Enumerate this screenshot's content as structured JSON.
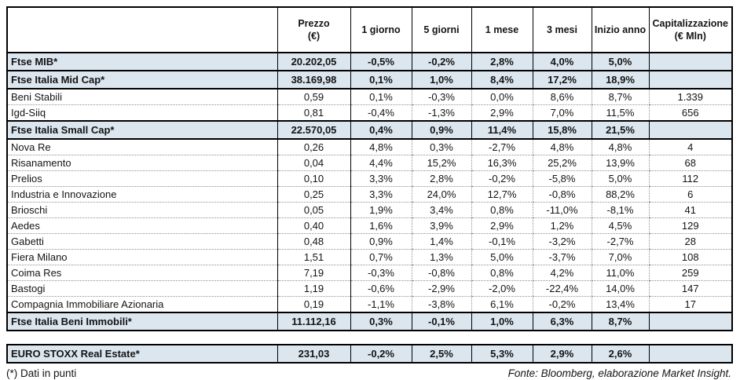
{
  "colors": {
    "index_row_bg": "#dce6ee",
    "border": "#000000",
    "dotted_border": "#8f8f8f"
  },
  "chart_data": {
    "type": "table",
    "title": "",
    "columns": [
      {
        "label": "",
        "sublabel": ""
      },
      {
        "label": "Prezzo",
        "sublabel": "(€)"
      },
      {
        "label": "1 giorno",
        "sublabel": ""
      },
      {
        "label": "5 giorni",
        "sublabel": ""
      },
      {
        "label": "1 mese",
        "sublabel": ""
      },
      {
        "label": "3 mesi",
        "sublabel": ""
      },
      {
        "label": "Inizio anno",
        "sublabel": ""
      },
      {
        "label": "Capitalizzazione",
        "sublabel": "(€ Mln)"
      }
    ],
    "rows": [
      {
        "name": "Ftse MIB*",
        "type": "index",
        "values": [
          "20.202,05",
          "-0,5%",
          "-0,2%",
          "2,8%",
          "4,0%",
          "5,0%",
          ""
        ]
      },
      {
        "name": "Ftse Italia Mid Cap*",
        "type": "index",
        "values": [
          "38.169,98",
          "0,1%",
          "1,0%",
          "8,4%",
          "17,2%",
          "18,9%",
          ""
        ]
      },
      {
        "name": "Beni Stabili",
        "type": "stock",
        "values": [
          "0,59",
          "0,1%",
          "-0,3%",
          "0,0%",
          "8,6%",
          "8,7%",
          "1.339"
        ]
      },
      {
        "name": "Igd-Siiq",
        "type": "stock",
        "values": [
          "0,81",
          "-0,4%",
          "-1,3%",
          "2,9%",
          "7,0%",
          "11,5%",
          "656"
        ]
      },
      {
        "name": "Ftse Italia Small Cap*",
        "type": "index",
        "values": [
          "22.570,05",
          "0,4%",
          "0,9%",
          "11,4%",
          "15,8%",
          "21,5%",
          ""
        ]
      },
      {
        "name": "Nova Re",
        "type": "stock",
        "values": [
          "0,26",
          "4,8%",
          "0,3%",
          "-2,7%",
          "4,8%",
          "4,8%",
          "4"
        ]
      },
      {
        "name": "Risanamento",
        "type": "stock",
        "values": [
          "0,04",
          "4,4%",
          "15,2%",
          "16,3%",
          "25,2%",
          "13,9%",
          "68"
        ]
      },
      {
        "name": "Prelios",
        "type": "stock",
        "values": [
          "0,10",
          "3,3%",
          "2,8%",
          "-0,2%",
          "-5,8%",
          "5,0%",
          "112"
        ]
      },
      {
        "name": "Industria e Innovazione",
        "type": "stock",
        "values": [
          "0,25",
          "3,3%",
          "24,0%",
          "12,7%",
          "-0,8%",
          "88,2%",
          "6"
        ]
      },
      {
        "name": "Brioschi",
        "type": "stock",
        "values": [
          "0,05",
          "1,9%",
          "3,4%",
          "0,8%",
          "-11,0%",
          "-8,1%",
          "41"
        ]
      },
      {
        "name": "Aedes",
        "type": "stock",
        "values": [
          "0,40",
          "1,6%",
          "3,9%",
          "2,9%",
          "1,2%",
          "4,5%",
          "129"
        ]
      },
      {
        "name": "Gabetti",
        "type": "stock",
        "values": [
          "0,48",
          "0,9%",
          "1,4%",
          "-0,1%",
          "-3,2%",
          "-2,7%",
          "28"
        ]
      },
      {
        "name": "Fiera Milano",
        "type": "stock",
        "values": [
          "1,51",
          "0,7%",
          "1,3%",
          "5,0%",
          "-3,7%",
          "7,0%",
          "108"
        ]
      },
      {
        "name": "Coima Res",
        "type": "stock",
        "values": [
          "7,19",
          "-0,3%",
          "-0,8%",
          "0,8%",
          "4,2%",
          "11,0%",
          "259"
        ]
      },
      {
        "name": "Bastogi",
        "type": "stock",
        "values": [
          "1,19",
          "-0,6%",
          "-2,9%",
          "-2,0%",
          "-22,4%",
          "14,0%",
          "147"
        ]
      },
      {
        "name": "Compagnia Immobiliare Azionaria",
        "type": "stock",
        "values": [
          "0,19",
          "-1,1%",
          "-3,8%",
          "6,1%",
          "-0,2%",
          "13,4%",
          "17"
        ]
      },
      {
        "name": "Ftse Italia Beni Immobili*",
        "type": "index",
        "values": [
          "11.112,16",
          "0,3%",
          "-0,1%",
          "1,0%",
          "6,3%",
          "8,7%",
          ""
        ]
      }
    ],
    "euro_stoxx_row": {
      "name": "EURO STOXX Real Estate*",
      "type": "index",
      "values": [
        "231,03",
        "-0,2%",
        "2,5%",
        "5,3%",
        "2,9%",
        "2,6%",
        ""
      ]
    },
    "footnote_left": "(*) Dati in punti",
    "footnote_right": "Fonte: Bloomberg, elaborazione Market Insight."
  }
}
